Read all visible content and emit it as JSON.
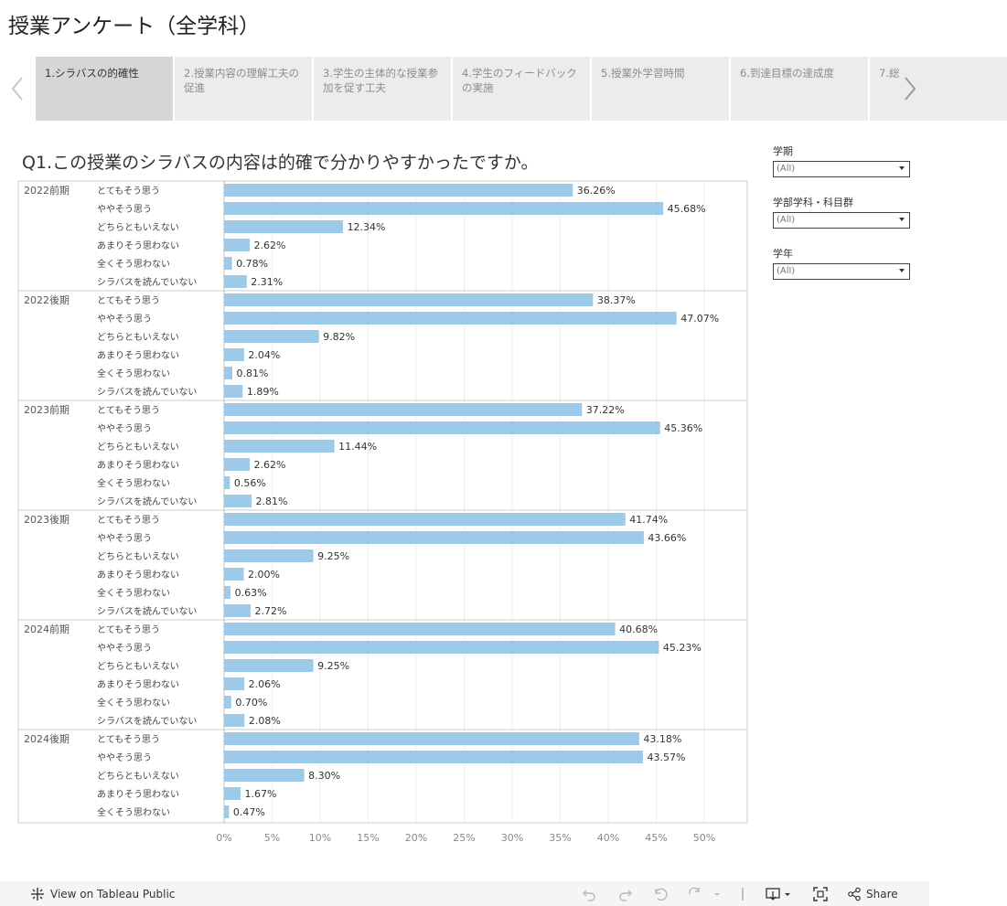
{
  "title": "授業アンケート（全学科）",
  "tabs": [
    {
      "label": "1.シラバスの的確性",
      "active": true
    },
    {
      "label": "2.授業内容の理解工夫の促進",
      "active": false
    },
    {
      "label": "3.学生の主体的な授業参加を促す工夫",
      "active": false
    },
    {
      "label": "4.学生のフィードバックの実施",
      "active": false
    },
    {
      "label": "5.授業外学習時間",
      "active": false
    },
    {
      "label": "6.到達目標の達成度",
      "active": false
    },
    {
      "label": "7.総",
      "active": false
    }
  ],
  "question": "Q1.この授業のシラバスの内容は的確で分かりやすかったですか。",
  "filters": [
    {
      "label": "学期",
      "value": "(All)"
    },
    {
      "label": "学部学科・科目群",
      "value": "(All)"
    },
    {
      "label": "学年",
      "value": "(All)"
    }
  ],
  "chart_data": {
    "type": "bar",
    "orientation": "horizontal",
    "x_ticks": [
      "0%",
      "5%",
      "10%",
      "15%",
      "20%",
      "25%",
      "30%",
      "35%",
      "40%",
      "45%",
      "50%"
    ],
    "xlim": [
      0,
      52
    ],
    "bar_color": "#9ecae9",
    "groups": [
      {
        "period": "2022前期",
        "rows": [
          {
            "category": "とてもそう思う",
            "value": 36.26,
            "label": "36.26%"
          },
          {
            "category": "ややそう思う",
            "value": 45.68,
            "label": "45.68%"
          },
          {
            "category": "どちらともいえない",
            "value": 12.34,
            "label": "12.34%"
          },
          {
            "category": "あまりそう思わない",
            "value": 2.62,
            "label": "2.62%"
          },
          {
            "category": "全くそう思わない",
            "value": 0.78,
            "label": "0.78%"
          },
          {
            "category": "シラバスを読んでいない",
            "value": 2.31,
            "label": "2.31%"
          }
        ]
      },
      {
        "period": "2022後期",
        "rows": [
          {
            "category": "とてもそう思う",
            "value": 38.37,
            "label": "38.37%"
          },
          {
            "category": "ややそう思う",
            "value": 47.07,
            "label": "47.07%"
          },
          {
            "category": "どちらともいえない",
            "value": 9.82,
            "label": "9.82%"
          },
          {
            "category": "あまりそう思わない",
            "value": 2.04,
            "label": "2.04%"
          },
          {
            "category": "全くそう思わない",
            "value": 0.81,
            "label": "0.81%"
          },
          {
            "category": "シラバスを読んでいない",
            "value": 1.89,
            "label": "1.89%"
          }
        ]
      },
      {
        "period": "2023前期",
        "rows": [
          {
            "category": "とてもそう思う",
            "value": 37.22,
            "label": "37.22%"
          },
          {
            "category": "ややそう思う",
            "value": 45.36,
            "label": "45.36%"
          },
          {
            "category": "どちらともいえない",
            "value": 11.44,
            "label": "11.44%"
          },
          {
            "category": "あまりそう思わない",
            "value": 2.62,
            "label": "2.62%"
          },
          {
            "category": "全くそう思わない",
            "value": 0.56,
            "label": "0.56%"
          },
          {
            "category": "シラバスを読んでいない",
            "value": 2.81,
            "label": "2.81%"
          }
        ]
      },
      {
        "period": "2023後期",
        "rows": [
          {
            "category": "とてもそう思う",
            "value": 41.74,
            "label": "41.74%"
          },
          {
            "category": "ややそう思う",
            "value": 43.66,
            "label": "43.66%"
          },
          {
            "category": "どちらともいえない",
            "value": 9.25,
            "label": "9.25%"
          },
          {
            "category": "あまりそう思わない",
            "value": 2.0,
            "label": "2.00%"
          },
          {
            "category": "全くそう思わない",
            "value": 0.63,
            "label": "0.63%"
          },
          {
            "category": "シラバスを読んでいない",
            "value": 2.72,
            "label": "2.72%"
          }
        ]
      },
      {
        "period": "2024前期",
        "rows": [
          {
            "category": "とてもそう思う",
            "value": 40.68,
            "label": "40.68%"
          },
          {
            "category": "ややそう思う",
            "value": 45.23,
            "label": "45.23%"
          },
          {
            "category": "どちらともいえない",
            "value": 9.25,
            "label": "9.25%"
          },
          {
            "category": "あまりそう思わない",
            "value": 2.06,
            "label": "2.06%"
          },
          {
            "category": "全くそう思わない",
            "value": 0.7,
            "label": "0.70%"
          },
          {
            "category": "シラバスを読んでいない",
            "value": 2.08,
            "label": "2.08%"
          }
        ]
      },
      {
        "period": "2024後期",
        "rows": [
          {
            "category": "とてもそう思う",
            "value": 43.18,
            "label": "43.18%"
          },
          {
            "category": "ややそう思う",
            "value": 43.57,
            "label": "43.57%"
          },
          {
            "category": "どちらともいえない",
            "value": 8.3,
            "label": "8.30%"
          },
          {
            "category": "あまりそう思わない",
            "value": 1.67,
            "label": "1.67%"
          },
          {
            "category": "全くそう思わない",
            "value": 0.47,
            "label": "0.47%"
          }
        ]
      }
    ]
  },
  "footer": {
    "view_label": "View on Tableau Public",
    "share_label": "Share",
    "icons": [
      "undo-icon",
      "redo-icon",
      "revert-icon",
      "refresh-icon",
      "download-icon",
      "fullscreen-icon",
      "share-icon"
    ]
  }
}
